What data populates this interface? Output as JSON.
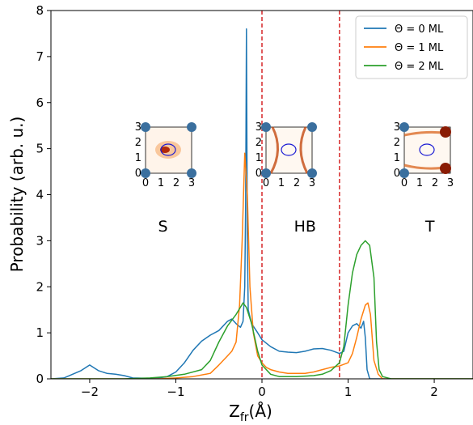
{
  "chart_data": {
    "type": "line",
    "xlabel": "Z",
    "xlabel_sub": "fr",
    "xlabel_unit": "(Å)",
    "ylabel": "Probability (arb. u.)",
    "xlim": [
      -2.45,
      2.45
    ],
    "ylim": [
      0,
      8
    ],
    "x_ticks": [
      -2,
      -1,
      0,
      1,
      2
    ],
    "x_tick_labels": [
      "−2",
      "−1",
      "0",
      "1",
      "2"
    ],
    "y_ticks": [
      0,
      1,
      2,
      3,
      4,
      5,
      6,
      7,
      8
    ],
    "y_tick_labels": [
      "0",
      "1",
      "2",
      "3",
      "4",
      "5",
      "6",
      "7",
      "8"
    ],
    "grid": false,
    "legend_position": "top-right",
    "series": [
      {
        "name": "Θ = 0 ML",
        "color": "#1f77b4",
        "points": [
          [
            -2.45,
            0.0
          ],
          [
            -2.3,
            0.02
          ],
          [
            -2.1,
            0.18
          ],
          [
            -2.0,
            0.3
          ],
          [
            -1.9,
            0.18
          ],
          [
            -1.8,
            0.12
          ],
          [
            -1.7,
            0.1
          ],
          [
            -1.6,
            0.07
          ],
          [
            -1.5,
            0.02
          ],
          [
            -1.3,
            0.01
          ],
          [
            -1.2,
            0.02
          ],
          [
            -1.1,
            0.05
          ],
          [
            -1.0,
            0.15
          ],
          [
            -0.9,
            0.35
          ],
          [
            -0.8,
            0.62
          ],
          [
            -0.7,
            0.82
          ],
          [
            -0.6,
            0.95
          ],
          [
            -0.5,
            1.05
          ],
          [
            -0.4,
            1.25
          ],
          [
            -0.35,
            1.3
          ],
          [
            -0.3,
            1.2
          ],
          [
            -0.25,
            1.12
          ],
          [
            -0.22,
            1.25
          ],
          [
            -0.2,
            2.0
          ],
          [
            -0.19,
            3.8
          ],
          [
            -0.18,
            7.6
          ],
          [
            -0.17,
            3.0
          ],
          [
            -0.16,
            1.5
          ],
          [
            -0.12,
            1.2
          ],
          [
            -0.05,
            1.0
          ],
          [
            0.0,
            0.85
          ],
          [
            0.1,
            0.7
          ],
          [
            0.2,
            0.6
          ],
          [
            0.3,
            0.58
          ],
          [
            0.4,
            0.57
          ],
          [
            0.5,
            0.6
          ],
          [
            0.6,
            0.65
          ],
          [
            0.7,
            0.66
          ],
          [
            0.8,
            0.62
          ],
          [
            0.9,
            0.55
          ],
          [
            0.95,
            0.6
          ],
          [
            1.0,
            1.0
          ],
          [
            1.05,
            1.15
          ],
          [
            1.1,
            1.2
          ],
          [
            1.15,
            1.1
          ],
          [
            1.18,
            1.25
          ],
          [
            1.2,
            0.9
          ],
          [
            1.22,
            0.2
          ],
          [
            1.25,
            0.0
          ],
          [
            2.45,
            0.0
          ]
        ]
      },
      {
        "name": "Θ = 1 ML",
        "color": "#ff7f0e",
        "points": [
          [
            -2.45,
            0.0
          ],
          [
            -1.2,
            0.0
          ],
          [
            -1.0,
            0.02
          ],
          [
            -0.8,
            0.05
          ],
          [
            -0.6,
            0.12
          ],
          [
            -0.5,
            0.3
          ],
          [
            -0.4,
            0.5
          ],
          [
            -0.35,
            0.6
          ],
          [
            -0.3,
            0.8
          ],
          [
            -0.26,
            1.6
          ],
          [
            -0.23,
            3.0
          ],
          [
            -0.2,
            4.9
          ],
          [
            -0.17,
            4.0
          ],
          [
            -0.14,
            2.0
          ],
          [
            -0.1,
            1.0
          ],
          [
            -0.05,
            0.5
          ],
          [
            0.0,
            0.35
          ],
          [
            0.05,
            0.25
          ],
          [
            0.1,
            0.2
          ],
          [
            0.2,
            0.15
          ],
          [
            0.3,
            0.12
          ],
          [
            0.4,
            0.12
          ],
          [
            0.5,
            0.12
          ],
          [
            0.6,
            0.15
          ],
          [
            0.7,
            0.2
          ],
          [
            0.8,
            0.25
          ],
          [
            0.9,
            0.28
          ],
          [
            1.0,
            0.35
          ],
          [
            1.05,
            0.55
          ],
          [
            1.1,
            0.9
          ],
          [
            1.15,
            1.3
          ],
          [
            1.2,
            1.6
          ],
          [
            1.23,
            1.65
          ],
          [
            1.26,
            1.4
          ],
          [
            1.3,
            0.4
          ],
          [
            1.35,
            0.1
          ],
          [
            1.4,
            0.0
          ],
          [
            2.45,
            0.0
          ]
        ]
      },
      {
        "name": "Θ = 2 ML",
        "color": "#2ca02c",
        "points": [
          [
            -2.45,
            0.0
          ],
          [
            -1.6,
            0.0
          ],
          [
            -1.3,
            0.02
          ],
          [
            -1.1,
            0.05
          ],
          [
            -0.9,
            0.1
          ],
          [
            -0.7,
            0.2
          ],
          [
            -0.6,
            0.4
          ],
          [
            -0.5,
            0.8
          ],
          [
            -0.4,
            1.15
          ],
          [
            -0.3,
            1.4
          ],
          [
            -0.22,
            1.65
          ],
          [
            -0.18,
            1.55
          ],
          [
            -0.12,
            1.2
          ],
          [
            -0.05,
            0.6
          ],
          [
            0.0,
            0.3
          ],
          [
            0.1,
            0.1
          ],
          [
            0.2,
            0.05
          ],
          [
            0.4,
            0.05
          ],
          [
            0.6,
            0.07
          ],
          [
            0.7,
            0.1
          ],
          [
            0.8,
            0.18
          ],
          [
            0.9,
            0.35
          ],
          [
            0.95,
            0.7
          ],
          [
            1.0,
            1.6
          ],
          [
            1.05,
            2.3
          ],
          [
            1.1,
            2.7
          ],
          [
            1.15,
            2.9
          ],
          [
            1.2,
            3.0
          ],
          [
            1.25,
            2.9
          ],
          [
            1.3,
            2.2
          ],
          [
            1.33,
            0.8
          ],
          [
            1.36,
            0.2
          ],
          [
            1.4,
            0.05
          ],
          [
            1.5,
            0.0
          ],
          [
            2.45,
            0.0
          ]
        ]
      }
    ],
    "dividers": [
      {
        "x": 0.0,
        "color": "#d62728",
        "style": "dashed"
      },
      {
        "x": 0.9,
        "color": "#d62728",
        "style": "dashed"
      }
    ],
    "region_labels": [
      {
        "text": "S",
        "x": -1.15,
        "y": 3.2
      },
      {
        "text": "HB",
        "x": 0.5,
        "y": 3.2
      },
      {
        "text": "T",
        "x": 1.95,
        "y": 3.2
      }
    ],
    "insets": [
      {
        "region": "S",
        "tick_labels": [
          "0",
          "1",
          "2",
          "3"
        ]
      },
      {
        "region": "HB",
        "tick_labels": [
          "0",
          "1",
          "2",
          "3"
        ]
      },
      {
        "region": "T",
        "tick_labels": [
          "0",
          "1",
          "2",
          "3"
        ]
      }
    ]
  }
}
